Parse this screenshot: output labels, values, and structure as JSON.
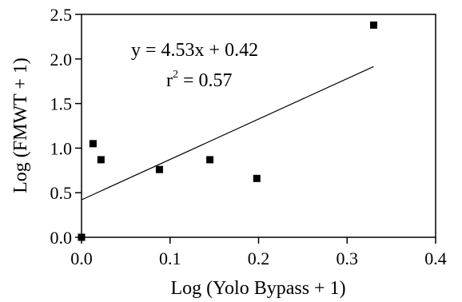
{
  "chart_data": {
    "type": "scatter",
    "xlabel": "Log (Yolo Bypass + 1)",
    "ylabel": "Log (FMWT + 1)",
    "xlim": [
      0.0,
      0.4
    ],
    "ylim": [
      0.0,
      2.5
    ],
    "x_ticks": [
      "0.0",
      "0.1",
      "0.2",
      "0.3",
      "0.4"
    ],
    "y_ticks": [
      "0.0",
      "0.5",
      "1.0",
      "1.5",
      "2.0",
      "2.5"
    ],
    "grid": false,
    "legend": "none",
    "points": [
      {
        "x": 0.0,
        "y": 0.0
      },
      {
        "x": 0.013,
        "y": 1.05
      },
      {
        "x": 0.022,
        "y": 0.87
      },
      {
        "x": 0.088,
        "y": 0.76
      },
      {
        "x": 0.145,
        "y": 0.87
      },
      {
        "x": 0.198,
        "y": 0.66
      },
      {
        "x": 0.33,
        "y": 2.38
      }
    ],
    "regression": {
      "slope": 4.53,
      "intercept": 0.42,
      "x_range": [
        0.0,
        0.33
      ]
    },
    "annotation": {
      "equation": "y = 4.53x + 0.42",
      "r_prefix": "r",
      "r_exp": "2",
      "r_value": " = 0.57"
    },
    "colors": {
      "marker": "#000000",
      "line": "#000000",
      "axis": "#000000"
    }
  }
}
